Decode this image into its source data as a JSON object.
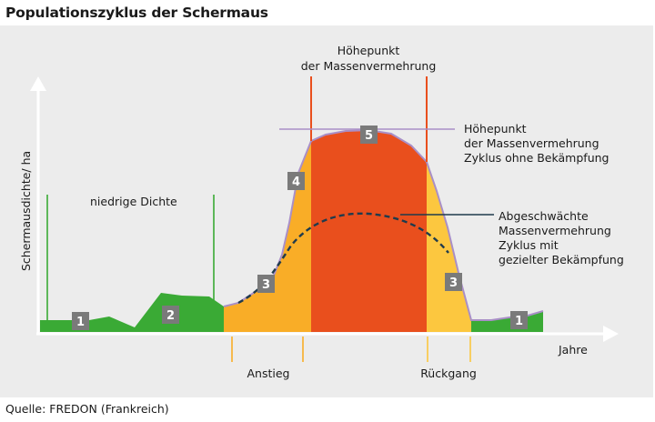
{
  "title": "Populationszyklus der Schermaus",
  "source": "Quelle: FREDON (Frankreich)",
  "axes": {
    "y_label": "Schermausdichte/ ha",
    "x_label": "Jahre"
  },
  "annotations": {
    "low_density": "niedrige Dichte",
    "peak_top_line1": "Höhepunkt",
    "peak_top_line2": "der Massenvermehrung",
    "peak_right_line1": "Höhepunkt",
    "peak_right_line2": "der Massenvermehrung",
    "peak_right_line3": "Zyklus ohne Bekämpfung",
    "weak_line1": "Abgeschwächte",
    "weak_line2": "Massenvermehrung",
    "weak_line3": "Zyklus mit",
    "weak_line4": "gezielter Bekämpfung",
    "rise": "Anstieg",
    "decline": "Rückgang"
  },
  "phase_markers": [
    "1",
    "2",
    "3",
    "4",
    "5",
    "3",
    "1"
  ],
  "colors": {
    "green": "#3aaa35",
    "light_orange": "#f9ad27",
    "red_orange": "#e94f1d",
    "yellow": "#fcc73f",
    "outline_purple": "#a98fc7",
    "dashed_curve": "#1f3b4d",
    "marker_bg": "#7a7a7a",
    "panel_bg": "#ececec"
  }
}
